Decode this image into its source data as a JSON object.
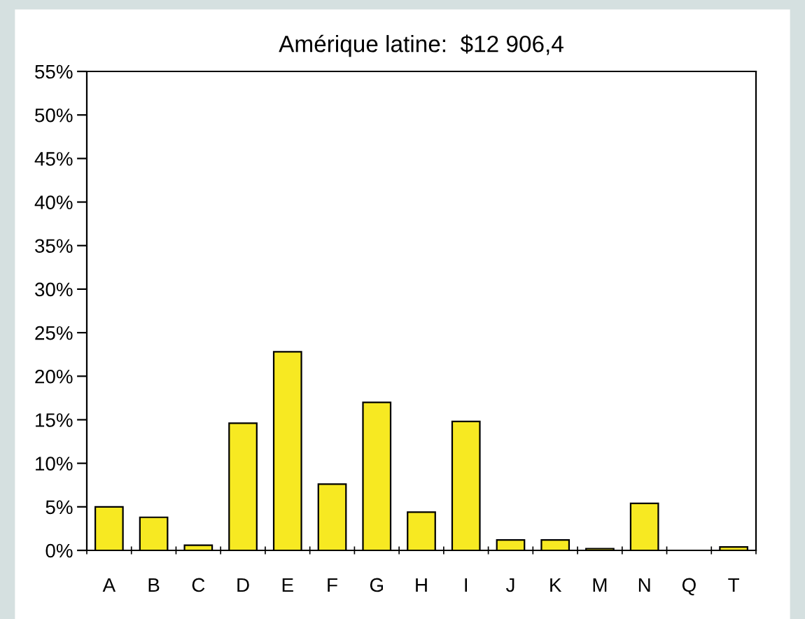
{
  "chart_data": {
    "type": "bar",
    "title": "Amérique latine:  $12 906,4",
    "categories": [
      "A",
      "B",
      "C",
      "D",
      "E",
      "F",
      "G",
      "H",
      "I",
      "J",
      "K",
      "M",
      "N",
      "Q",
      "T"
    ],
    "values": [
      5.0,
      3.8,
      0.6,
      14.6,
      22.8,
      7.6,
      17.0,
      4.4,
      14.8,
      1.2,
      1.2,
      0.2,
      5.4,
      null,
      0.4
    ],
    "color": "#f7e922",
    "ylim": [
      0,
      55
    ],
    "yticks": [
      {
        "value": 0,
        "label": "0%"
      },
      {
        "value": 5,
        "label": "5%"
      },
      {
        "value": 10,
        "label": "10%"
      },
      {
        "value": 15,
        "label": "15%"
      },
      {
        "value": 20,
        "label": "20%"
      },
      {
        "value": 25,
        "label": "25%"
      },
      {
        "value": 30,
        "label": "30%"
      },
      {
        "value": 35,
        "label": "35%"
      },
      {
        "value": 40,
        "label": "40%"
      },
      {
        "value": 45,
        "label": "45%"
      },
      {
        "value": 50,
        "label": "50%"
      },
      {
        "value": 55,
        "label": "55%"
      }
    ],
    "grid": false,
    "legend": false
  }
}
